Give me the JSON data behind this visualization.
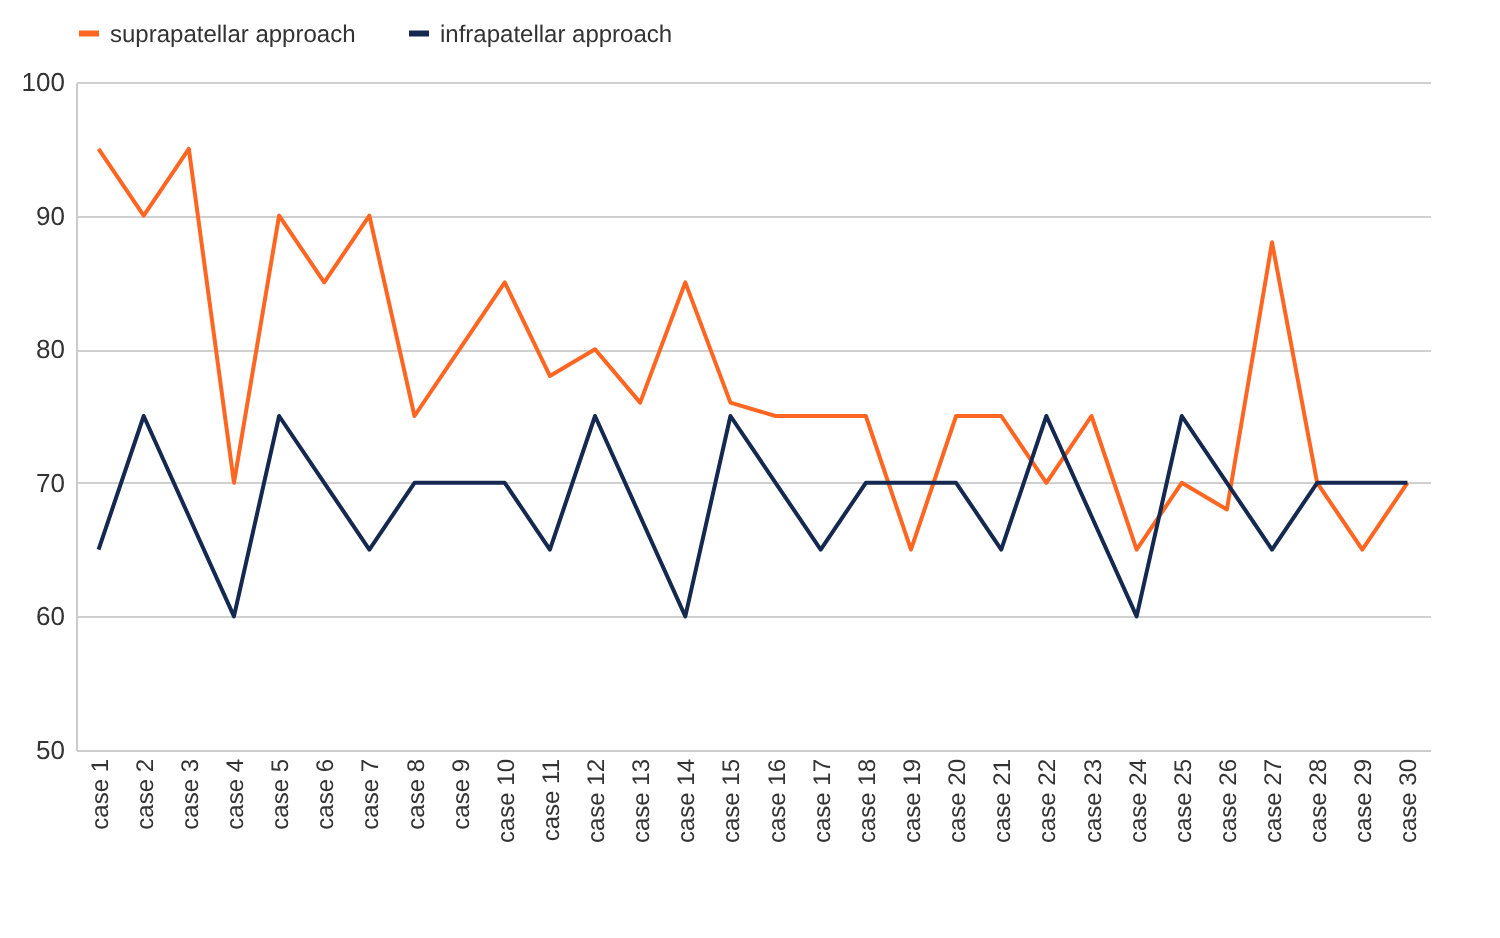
{
  "chart_data": {
    "type": "line",
    "categories": [
      "case 1",
      "case 2",
      "case 3",
      "case 4",
      "case 5",
      "case 6",
      "case 7",
      "case 8",
      "case 9",
      "case 10",
      "case 11",
      "case 12",
      "case 13",
      "case 14",
      "case 15",
      "case 16",
      "case 17",
      "case 18",
      "case 19",
      "case 20",
      "case 21",
      "case 22",
      "case 23",
      "case 24",
      "case 25",
      "case 26",
      "case 27",
      "case 28",
      "case 29",
      "case 30"
    ],
    "series": [
      {
        "name": "suprapatellar approach",
        "color": "#ff6622",
        "values": [
          95,
          90,
          95,
          70,
          90,
          85,
          90,
          75,
          80,
          85,
          78,
          80,
          76,
          85,
          76,
          75,
          75,
          75,
          65,
          75,
          75,
          70,
          75,
          65,
          70,
          68,
          88,
          70,
          65,
          70
        ]
      },
      {
        "name": "infrapatellar approach",
        "color": "#142850",
        "values": [
          65,
          75,
          67.5,
          60,
          75,
          70,
          65,
          70,
          70,
          70,
          65,
          75,
          67.5,
          60,
          75,
          70,
          65,
          70,
          70,
          70,
          65,
          75,
          67.5,
          60,
          75,
          70,
          65,
          70,
          70,
          70
        ]
      }
    ],
    "ylim": [
      50,
      100
    ],
    "yticks": [
      50,
      60,
      70,
      80,
      90,
      100
    ],
    "grid": "y",
    "legend": "top",
    "marker": "none",
    "line_style": "solid"
  }
}
